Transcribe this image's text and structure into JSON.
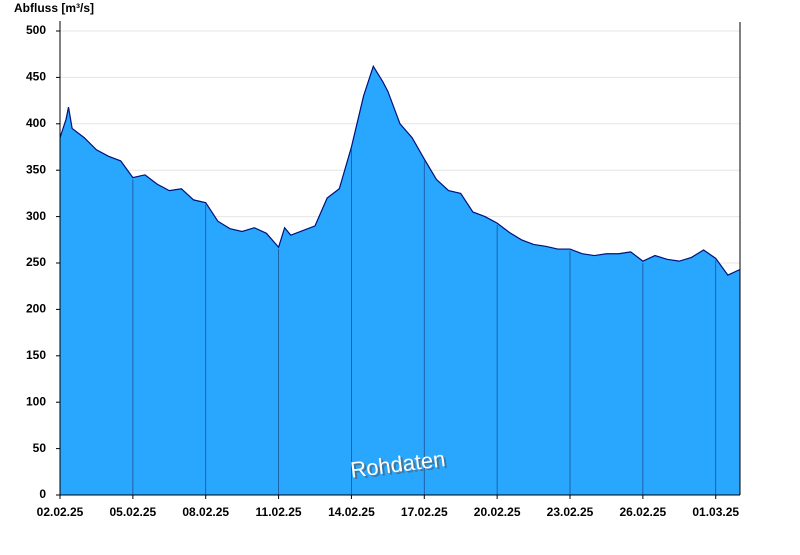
{
  "chart_data": {
    "type": "area",
    "y_label": "Abfluss [m³/s]",
    "annotation": "Rohdaten",
    "color": "#29a6fe",
    "line_color": "#00117a",
    "grid": true,
    "x": [
      0,
      0.25,
      0.35,
      0.5,
      1,
      1.5,
      2,
      2.5,
      3,
      3.5,
      4,
      4.5,
      5,
      5.5,
      6,
      6.5,
      7,
      7.5,
      8,
      8.5,
      9,
      9.25,
      9.5,
      10,
      10.5,
      11,
      11.5,
      12,
      12.5,
      12.9,
      13.3,
      13.5,
      14,
      14.5,
      15,
      15.5,
      16,
      16.5,
      17,
      17.5,
      18,
      18.5,
      19,
      19.5,
      20,
      20.5,
      21,
      21.5,
      22,
      22.5,
      23,
      23.5,
      24,
      24.5,
      25,
      25.5,
      26,
      26.5,
      27,
      27.5,
      28
    ],
    "values": [
      385,
      405,
      418,
      395,
      385,
      372,
      365,
      360,
      342,
      345,
      335,
      328,
      330,
      318,
      315,
      295,
      287,
      284,
      288,
      282,
      267,
      288,
      280,
      285,
      290,
      320,
      330,
      375,
      430,
      462,
      445,
      435,
      400,
      385,
      362,
      340,
      328,
      325,
      305,
      300,
      293,
      283,
      275,
      270,
      268,
      265,
      265,
      260,
      258,
      260,
      260,
      262,
      252,
      258,
      254,
      252,
      256,
      264,
      255,
      237,
      243
    ],
    "xlim": [
      0,
      28
    ],
    "xticks": [
      {
        "value": 0,
        "label": "02.02.25"
      },
      {
        "value": 3,
        "label": "05.02.25"
      },
      {
        "value": 6,
        "label": "08.02.25"
      },
      {
        "value": 9,
        "label": "11.02.25"
      },
      {
        "value": 12,
        "label": "14.02.25"
      },
      {
        "value": 15,
        "label": "17.02.25"
      },
      {
        "value": 18,
        "label": "20.02.25"
      },
      {
        "value": 21,
        "label": "23.02.25"
      },
      {
        "value": 24,
        "label": "26.02.25"
      },
      {
        "value": 27,
        "label": "01.03.25"
      }
    ],
    "ylim": [
      0,
      500
    ],
    "yticks": [
      0,
      50,
      100,
      150,
      200,
      250,
      300,
      350,
      400,
      450,
      500
    ]
  }
}
